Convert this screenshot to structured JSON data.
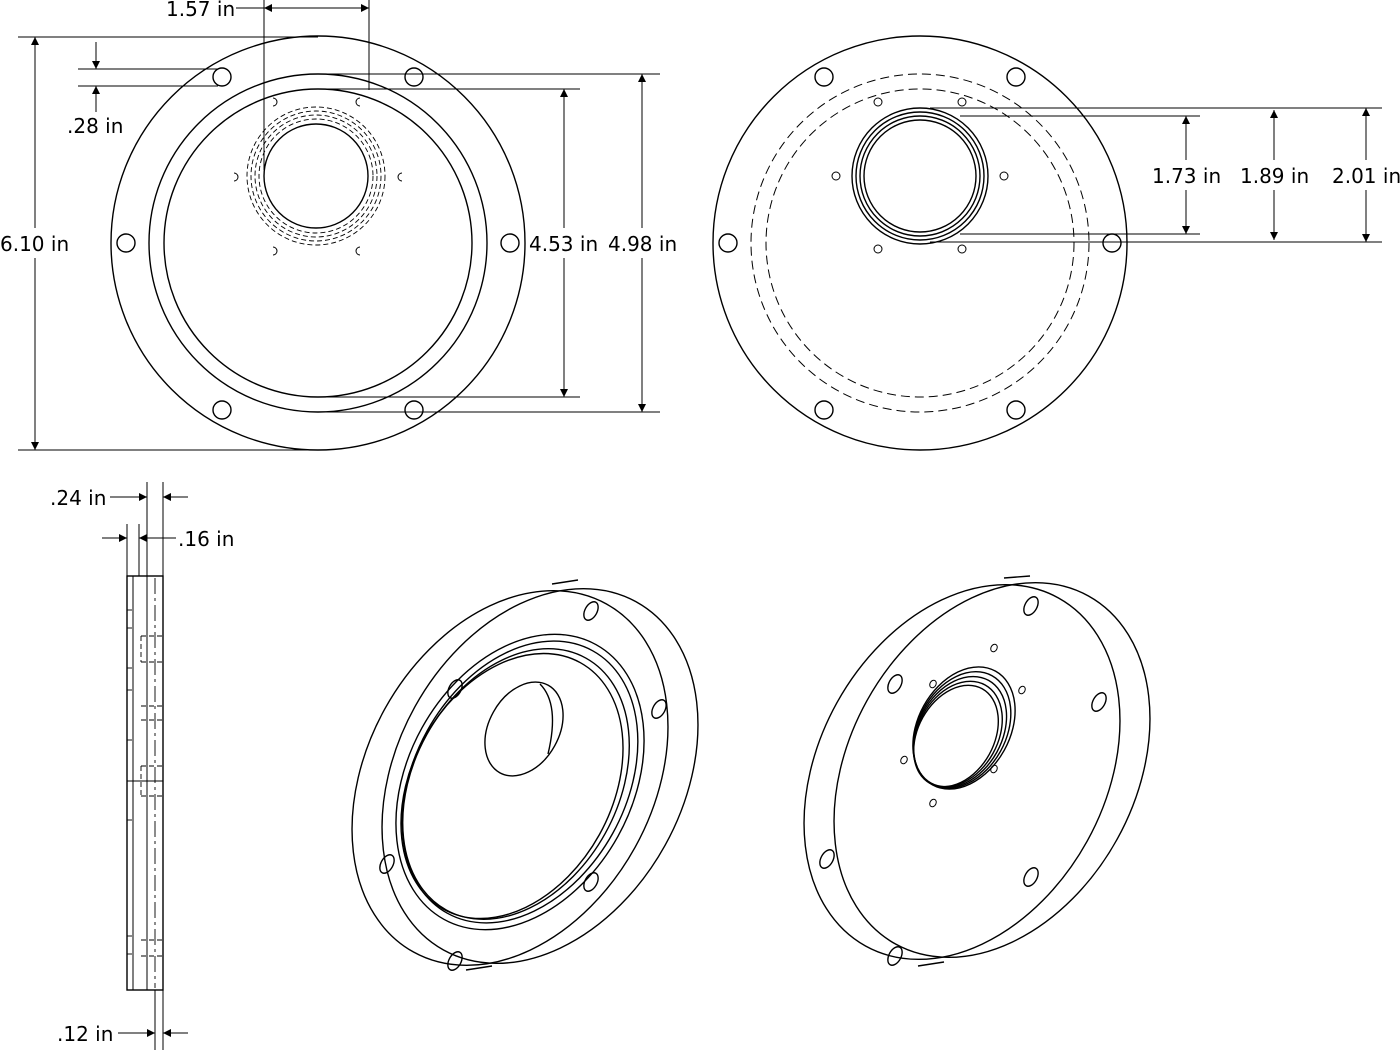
{
  "dimensions": {
    "top_width": "1.57 in",
    "hole_dia": ".28 in",
    "outer_dia": "6.10 in",
    "inner_dia_a": "4.53 in",
    "inner_dia_b": "4.98 in",
    "bore_a": "1.73 in",
    "bore_b": "1.89 in",
    "bore_c": "2.01 in",
    "thick_a": ".24 in",
    "thick_b": ".16 in",
    "thick_c": ".12 in"
  }
}
